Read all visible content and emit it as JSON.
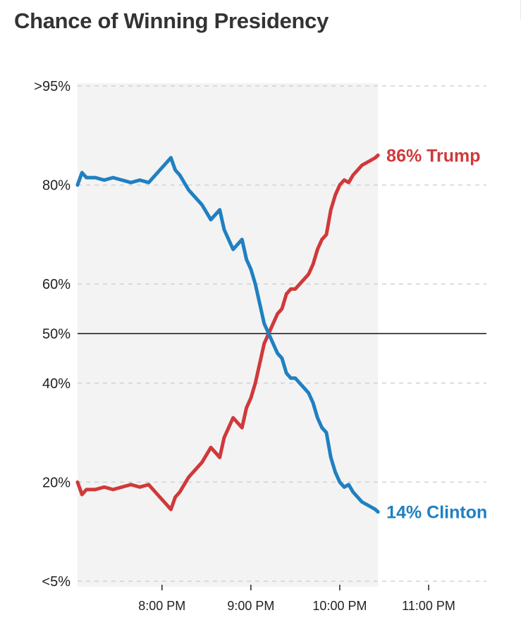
{
  "title": "Chance of Winning Presidency",
  "colors": {
    "trump": "#d0393a",
    "clinton": "#1f80c2",
    "shade": "#f3f3f3",
    "grid": "#d2d2d2",
    "midline": "#111111"
  },
  "chart_data": {
    "type": "line",
    "title": "Chance of Winning Presidency",
    "xlabel": "",
    "ylabel": "",
    "x_unit": "hours (24h clock)",
    "xlim": [
      19.05,
      23.65
    ],
    "y_unit": "percent",
    "ylim": [
      0,
      100
    ],
    "y_ticks": [
      {
        "value": 100,
        "label": ">95%"
      },
      {
        "value": 80,
        "label": "80%"
      },
      {
        "value": 60,
        "label": "60%"
      },
      {
        "value": 50,
        "label": "50%"
      },
      {
        "value": 40,
        "label": "40%"
      },
      {
        "value": 20,
        "label": "20%"
      },
      {
        "value": 0,
        "label": "<5%"
      }
    ],
    "x_ticks": [
      {
        "value": 20,
        "label": "8:00 PM"
      },
      {
        "value": 21,
        "label": "9:00 PM"
      },
      {
        "value": 22,
        "label": "10:00 PM"
      },
      {
        "value": 23,
        "label": "11:00 PM"
      }
    ],
    "shaded_until": 22.43,
    "grid": true,
    "series": [
      {
        "name": "Trump",
        "color": "#d0393a",
        "end_label": "86% Trump",
        "x": [
          19.05,
          19.1,
          19.15,
          19.25,
          19.35,
          19.45,
          19.55,
          19.65,
          19.75,
          19.85,
          19.95,
          20.05,
          20.1,
          20.15,
          20.2,
          20.25,
          20.3,
          20.35,
          20.45,
          20.55,
          20.6,
          20.65,
          20.7,
          20.75,
          20.8,
          20.9,
          20.95,
          21.0,
          21.05,
          21.1,
          21.15,
          21.2,
          21.25,
          21.3,
          21.35,
          21.4,
          21.45,
          21.5,
          21.55,
          21.6,
          21.65,
          21.7,
          21.75,
          21.8,
          21.85,
          21.9,
          21.95,
          22.0,
          22.05,
          22.1,
          22.15,
          22.2,
          22.25,
          22.3,
          22.35,
          22.4,
          22.43
        ],
        "y": [
          20,
          17.5,
          18.5,
          18.5,
          19,
          18.5,
          19,
          19.5,
          19,
          19.5,
          17.5,
          15.5,
          14.5,
          17,
          18,
          19.5,
          21,
          22,
          24,
          27,
          26,
          25,
          29,
          31,
          33,
          31,
          35,
          37,
          40,
          44,
          48,
          50,
          52,
          54,
          55,
          58,
          59,
          59,
          60,
          61,
          62,
          64,
          67,
          69,
          70,
          75,
          78,
          80,
          81,
          80.5,
          82,
          83,
          84,
          84.5,
          85,
          85.5,
          86
        ]
      },
      {
        "name": "Clinton",
        "color": "#1f80c2",
        "end_label": "14% Clinton",
        "x": [
          19.05,
          19.1,
          19.15,
          19.25,
          19.35,
          19.45,
          19.55,
          19.65,
          19.75,
          19.85,
          19.95,
          20.05,
          20.1,
          20.15,
          20.2,
          20.25,
          20.3,
          20.35,
          20.45,
          20.55,
          20.6,
          20.65,
          20.7,
          20.75,
          20.8,
          20.9,
          20.95,
          21.0,
          21.05,
          21.1,
          21.15,
          21.2,
          21.25,
          21.3,
          21.35,
          21.4,
          21.45,
          21.5,
          21.55,
          21.6,
          21.65,
          21.7,
          21.75,
          21.8,
          21.85,
          21.9,
          21.95,
          22.0,
          22.05,
          22.1,
          22.15,
          22.2,
          22.25,
          22.3,
          22.35,
          22.4,
          22.43
        ],
        "y": [
          80,
          82.5,
          81.5,
          81.5,
          81,
          81.5,
          81,
          80.5,
          81,
          80.5,
          82.5,
          84.5,
          85.5,
          83,
          82,
          80.5,
          79,
          78,
          76,
          73,
          74,
          75,
          71,
          69,
          67,
          69,
          65,
          63,
          60,
          56,
          52,
          50,
          48,
          46,
          45,
          42,
          41,
          41,
          40,
          39,
          38,
          36,
          33,
          31,
          30,
          25,
          22,
          20,
          19,
          19.5,
          18,
          17,
          16,
          15.5,
          15,
          14.5,
          14
        ]
      }
    ]
  }
}
